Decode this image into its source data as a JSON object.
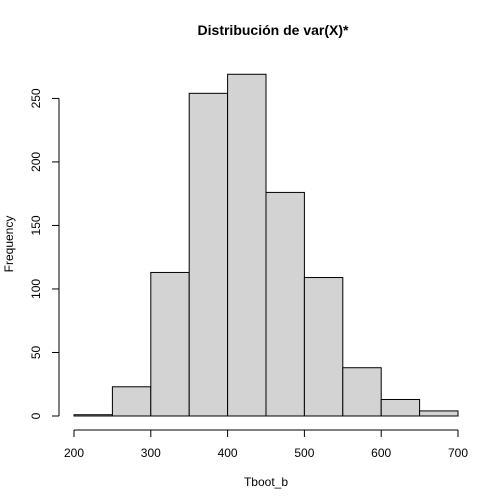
{
  "chart_data": {
    "type": "bar",
    "subtype": "histogram",
    "title": "Distribución de var(X)*",
    "xlabel": "Tboot_b",
    "ylabel": "Frequency",
    "bins": [
      {
        "start": 200,
        "end": 250,
        "count": 1
      },
      {
        "start": 250,
        "end": 300,
        "count": 23
      },
      {
        "start": 300,
        "end": 350,
        "count": 113
      },
      {
        "start": 350,
        "end": 400,
        "count": 254
      },
      {
        "start": 400,
        "end": 450,
        "count": 269
      },
      {
        "start": 450,
        "end": 500,
        "count": 176
      },
      {
        "start": 500,
        "end": 550,
        "count": 109
      },
      {
        "start": 550,
        "end": 600,
        "count": 38
      },
      {
        "start": 600,
        "end": 650,
        "count": 13
      },
      {
        "start": 650,
        "end": 700,
        "count": 4
      }
    ],
    "xlim": [
      200,
      700
    ],
    "ylim": [
      0,
      270
    ],
    "x_ticks": [
      200,
      300,
      400,
      500,
      600,
      700
    ],
    "y_ticks": [
      0,
      50,
      100,
      150,
      200,
      250
    ],
    "bar_fill": "#d3d3d3",
    "bar_stroke": "#000000",
    "grid": false,
    "legend": "none"
  }
}
